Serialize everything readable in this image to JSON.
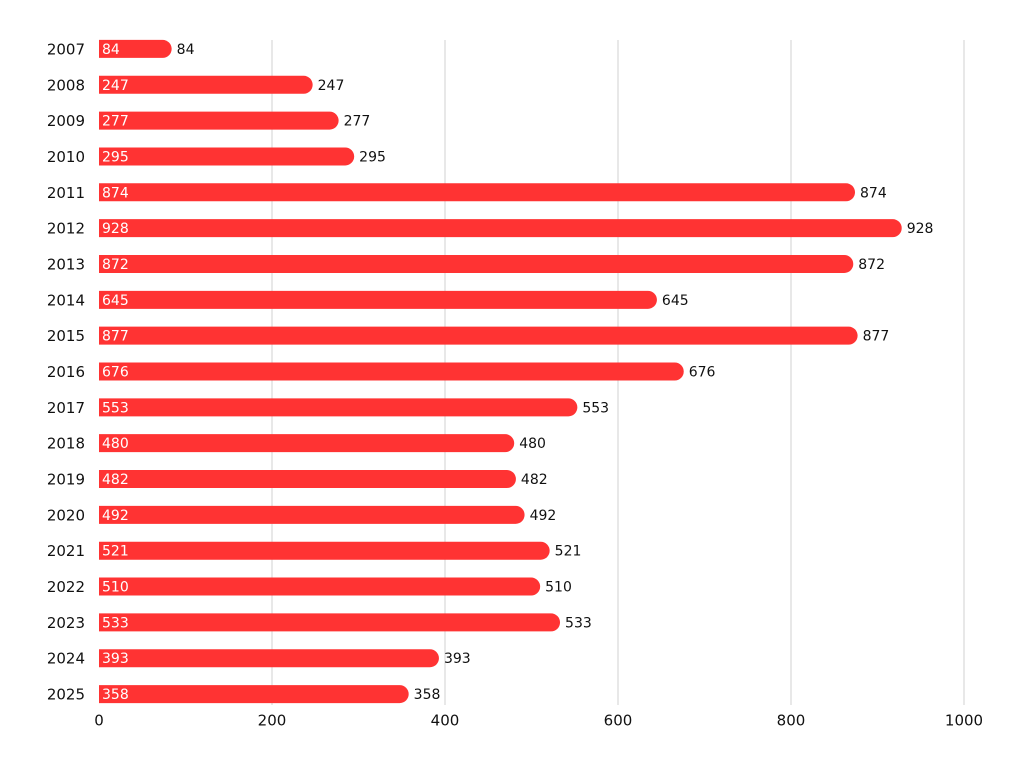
{
  "chart_data": {
    "type": "hbar",
    "categories": [
      "2007",
      "2008",
      "2009",
      "2010",
      "2011",
      "2012",
      "2013",
      "2014",
      "2015",
      "2016",
      "2017",
      "2018",
      "2019",
      "2020",
      "2021",
      "2022",
      "2023",
      "2024",
      "2025"
    ],
    "values": [
      84,
      247,
      277,
      295,
      874,
      928,
      872,
      645,
      877,
      676,
      553,
      480,
      482,
      492,
      521,
      510,
      533,
      393,
      358
    ],
    "color": "#ff3333",
    "xlim": [
      0,
      1000
    ],
    "xticks": [
      0,
      200,
      400,
      600,
      800,
      1000
    ],
    "grid": true
  }
}
